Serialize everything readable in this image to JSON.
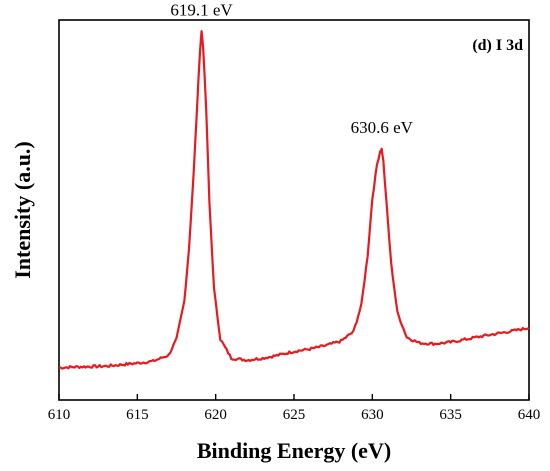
{
  "chart_data": {
    "type": "line",
    "title": "",
    "xlabel": "Binding Energy (eV)",
    "ylabel": "Intensity (a.u.)",
    "panel_label": "(d) I 3d",
    "xlim": [
      610,
      640
    ],
    "ylim": [
      0,
      1
    ],
    "x_ticks": [
      610,
      615,
      620,
      625,
      630,
      635,
      640
    ],
    "y_ticks_shown": false,
    "grid": false,
    "series_color": "#e8191f",
    "series": [
      {
        "x": [
          610,
          611,
          612,
          613,
          614,
          615,
          616,
          617,
          617.5,
          618,
          618.3,
          618.6,
          618.8,
          619.0,
          619.1,
          619.2,
          619.4,
          619.6,
          619.9,
          620.3,
          621,
          622,
          623,
          624,
          625,
          626,
          627,
          628,
          628.8,
          629.3,
          629.7,
          630.0,
          630.3,
          630.5,
          630.6,
          630.7,
          630.9,
          631.2,
          631.6,
          632.2,
          633,
          634,
          635,
          636,
          637,
          638,
          639,
          640
        ],
        "values": [
          0.085,
          0.087,
          0.088,
          0.089,
          0.093,
          0.097,
          0.102,
          0.118,
          0.16,
          0.26,
          0.4,
          0.6,
          0.76,
          0.92,
          0.97,
          0.93,
          0.76,
          0.52,
          0.29,
          0.16,
          0.11,
          0.105,
          0.11,
          0.118,
          0.128,
          0.134,
          0.143,
          0.155,
          0.18,
          0.25,
          0.38,
          0.53,
          0.62,
          0.655,
          0.66,
          0.63,
          0.52,
          0.36,
          0.23,
          0.165,
          0.15,
          0.148,
          0.152,
          0.16,
          0.168,
          0.175,
          0.182,
          0.19
        ]
      }
    ],
    "annotations": [
      {
        "text": "619.1 eV",
        "x": 619.1,
        "y": 0.97
      },
      {
        "text": "630.6 eV",
        "x": 630.6,
        "y": 0.66
      }
    ]
  }
}
